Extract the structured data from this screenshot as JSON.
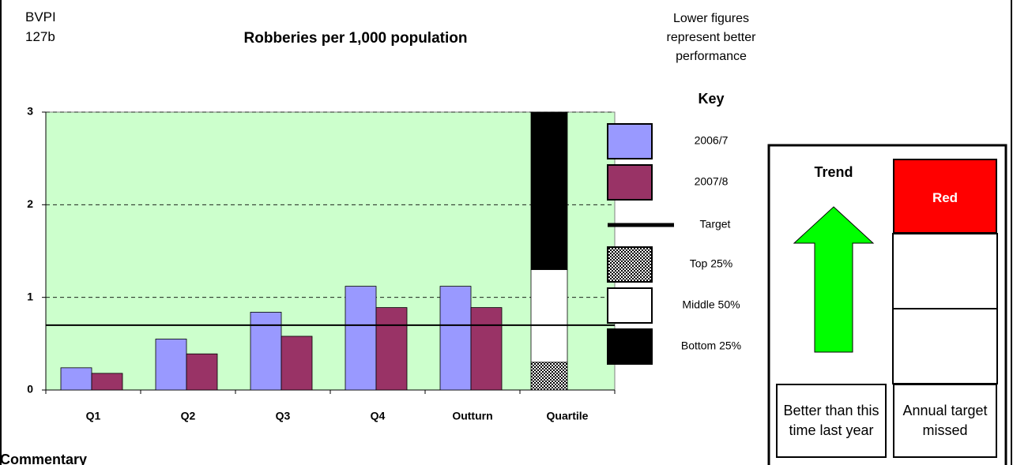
{
  "header": {
    "indicator": [
      "BVPI",
      "127b"
    ]
  },
  "chart_data": {
    "type": "bar",
    "title": "Robberies per 1,000 population",
    "note": "Lower figures represent better performance",
    "key_title": "Key",
    "categories": [
      "Q1",
      "Q2",
      "Q3",
      "Q4",
      "Outturn",
      "Quartile"
    ],
    "series": [
      {
        "name": "2006/7",
        "color": "#9999ff",
        "values": [
          0.24,
          0.55,
          0.84,
          1.12,
          1.12,
          null
        ]
      },
      {
        "name": "2007/8",
        "color": "#993366",
        "values": [
          0.18,
          0.39,
          0.58,
          0.89,
          0.89,
          null
        ]
      }
    ],
    "target": {
      "name": "Target",
      "value": 0.7,
      "color": "#000000"
    },
    "quartiles": [
      {
        "name": "Top 25%",
        "value": 0.3,
        "color": "pattern"
      },
      {
        "name": "Middle 50%",
        "value": 1.0,
        "color": "#ffffff"
      },
      {
        "name": "Bottom 25%",
        "value": 1.7,
        "color": "#000000"
      }
    ],
    "ylim": [
      0,
      3
    ],
    "yticks": [
      0,
      1,
      2,
      3
    ],
    "grid": true,
    "background": "#ccffcc"
  },
  "status": {
    "trend_label": "Trend",
    "trend_caption": "Better than this time last year",
    "rating": "Red",
    "rating_color": "#ff0000",
    "rating_caption": "Annual target missed"
  },
  "commentary": "Commentary"
}
